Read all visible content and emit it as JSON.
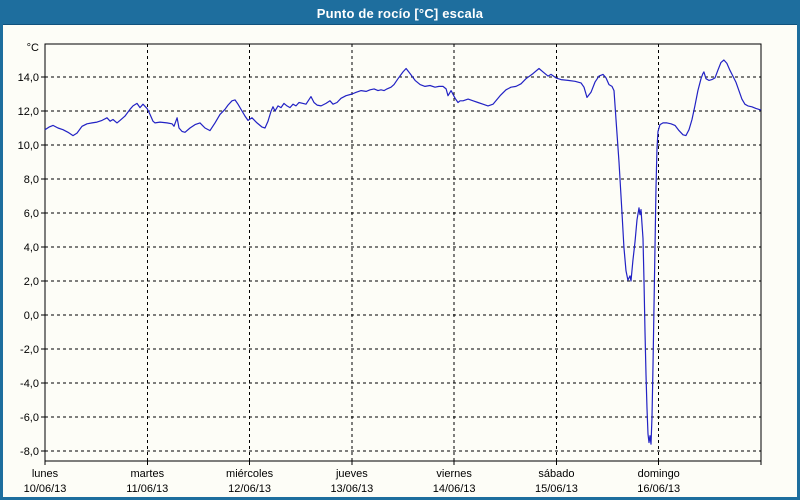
{
  "title": "Punto de rocío [°C] escala",
  "colors": {
    "title_bar": "#1E6E9E",
    "frame": "#1E6E9E",
    "line": "#2222C4",
    "grid": "#000000",
    "background": "#FDFDF7",
    "title_text": "#FFFFFF"
  },
  "chart_data": {
    "type": "line",
    "title": "Punto de rocío [°C] escala",
    "y_unit_label": "°C",
    "xlabel": "",
    "ylabel": "",
    "ylim": [
      -8.6,
      15.9
    ],
    "xlim_days": [
      0,
      7
    ],
    "grid": "dashed",
    "legend": "none",
    "y_ticks": [
      {
        "v": 14,
        "label": "14,0"
      },
      {
        "v": 12,
        "label": "12,0"
      },
      {
        "v": 10,
        "label": "10,0"
      },
      {
        "v": 8,
        "label": "8,0"
      },
      {
        "v": 6,
        "label": "6,0"
      },
      {
        "v": 4,
        "label": "4,0"
      },
      {
        "v": 2,
        "label": "2,0"
      },
      {
        "v": 0,
        "label": "0,0"
      },
      {
        "v": -2,
        "label": "-2,0"
      },
      {
        "v": -4,
        "label": "-4,0"
      },
      {
        "v": -6,
        "label": "-6,0"
      },
      {
        "v": -8,
        "label": "-8,0"
      }
    ],
    "x_days": [
      {
        "name": "lunes",
        "date": "10/06/13"
      },
      {
        "name": "martes",
        "date": "11/06/13"
      },
      {
        "name": "miércoles",
        "date": "12/06/13"
      },
      {
        "name": "jueves",
        "date": "13/06/13"
      },
      {
        "name": "viernes",
        "date": "14/06/13"
      },
      {
        "name": "sábado",
        "date": "15/06/13"
      },
      {
        "name": "domingo",
        "date": "16/06/13"
      }
    ],
    "series": [
      {
        "name": "Punto de rocío [°C]",
        "color": "#2222C4",
        "points": [
          [
            0.0,
            10.9
          ],
          [
            0.039,
            11.05
          ],
          [
            0.078,
            11.15
          ],
          [
            0.127,
            11.0
          ],
          [
            0.176,
            10.9
          ],
          [
            0.225,
            10.75
          ],
          [
            0.274,
            10.55
          ],
          [
            0.313,
            10.7
          ],
          [
            0.362,
            11.1
          ],
          [
            0.411,
            11.25
          ],
          [
            0.46,
            11.3
          ],
          [
            0.508,
            11.35
          ],
          [
            0.557,
            11.45
          ],
          [
            0.606,
            11.6
          ],
          [
            0.636,
            11.4
          ],
          [
            0.665,
            11.5
          ],
          [
            0.704,
            11.3
          ],
          [
            0.733,
            11.45
          ],
          [
            0.782,
            11.7
          ],
          [
            0.831,
            12.1
          ],
          [
            0.86,
            12.3
          ],
          [
            0.899,
            12.45
          ],
          [
            0.929,
            12.2
          ],
          [
            0.958,
            12.4
          ],
          [
            0.997,
            12.15
          ],
          [
            1.027,
            11.8
          ],
          [
            1.056,
            11.4
          ],
          [
            1.075,
            11.3
          ],
          [
            1.124,
            11.35
          ],
          [
            1.193,
            11.3
          ],
          [
            1.242,
            11.25
          ],
          [
            1.261,
            11.1
          ],
          [
            1.291,
            11.6
          ],
          [
            1.31,
            11.0
          ],
          [
            1.339,
            10.8
          ],
          [
            1.369,
            10.75
          ],
          [
            1.418,
            11.0
          ],
          [
            1.467,
            11.2
          ],
          [
            1.515,
            11.3
          ],
          [
            1.564,
            11.0
          ],
          [
            1.613,
            10.85
          ],
          [
            1.662,
            11.3
          ],
          [
            1.711,
            11.8
          ],
          [
            1.76,
            12.1
          ],
          [
            1.789,
            12.35
          ],
          [
            1.828,
            12.6
          ],
          [
            1.858,
            12.65
          ],
          [
            1.887,
            12.4
          ],
          [
            1.926,
            12.0
          ],
          [
            1.955,
            11.7
          ],
          [
            1.985,
            11.45
          ],
          [
            2.024,
            11.6
          ],
          [
            2.073,
            11.3
          ],
          [
            2.122,
            11.05
          ],
          [
            2.151,
            11.0
          ],
          [
            2.18,
            11.4
          ],
          [
            2.21,
            12.0
          ],
          [
            2.229,
            12.25
          ],
          [
            2.249,
            12.0
          ],
          [
            2.278,
            12.3
          ],
          [
            2.307,
            12.2
          ],
          [
            2.337,
            12.45
          ],
          [
            2.366,
            12.3
          ],
          [
            2.395,
            12.2
          ],
          [
            2.425,
            12.4
          ],
          [
            2.454,
            12.3
          ],
          [
            2.483,
            12.5
          ],
          [
            2.523,
            12.45
          ],
          [
            2.552,
            12.4
          ],
          [
            2.601,
            12.85
          ],
          [
            2.63,
            12.5
          ],
          [
            2.66,
            12.35
          ],
          [
            2.699,
            12.3
          ],
          [
            2.747,
            12.45
          ],
          [
            2.786,
            12.6
          ],
          [
            2.816,
            12.4
          ],
          [
            2.855,
            12.5
          ],
          [
            2.894,
            12.75
          ],
          [
            2.943,
            12.9
          ],
          [
            3.002,
            13.0
          ],
          [
            3.041,
            13.1
          ],
          [
            3.09,
            13.2
          ],
          [
            3.139,
            13.15
          ],
          [
            3.178,
            13.25
          ],
          [
            3.217,
            13.3
          ],
          [
            3.256,
            13.2
          ],
          [
            3.285,
            13.25
          ],
          [
            3.314,
            13.2
          ],
          [
            3.344,
            13.3
          ],
          [
            3.383,
            13.4
          ],
          [
            3.412,
            13.55
          ],
          [
            3.451,
            13.9
          ],
          [
            3.5,
            14.3
          ],
          [
            3.53,
            14.5
          ],
          [
            3.569,
            14.2
          ],
          [
            3.618,
            13.8
          ],
          [
            3.667,
            13.55
          ],
          [
            3.715,
            13.45
          ],
          [
            3.764,
            13.5
          ],
          [
            3.813,
            13.4
          ],
          [
            3.852,
            13.45
          ],
          [
            3.891,
            13.45
          ],
          [
            3.921,
            13.3
          ],
          [
            3.94,
            12.9
          ],
          [
            3.97,
            13.2
          ],
          [
            4.009,
            12.75
          ],
          [
            4.038,
            12.5
          ],
          [
            4.058,
            12.6
          ],
          [
            4.087,
            12.6
          ],
          [
            4.136,
            12.7
          ],
          [
            4.185,
            12.6
          ],
          [
            4.233,
            12.5
          ],
          [
            4.282,
            12.4
          ],
          [
            4.331,
            12.3
          ],
          [
            4.38,
            12.4
          ],
          [
            4.449,
            12.9
          ],
          [
            4.507,
            13.25
          ],
          [
            4.556,
            13.4
          ],
          [
            4.605,
            13.45
          ],
          [
            4.654,
            13.6
          ],
          [
            4.703,
            13.9
          ],
          [
            4.771,
            14.2
          ],
          [
            4.83,
            14.5
          ],
          [
            4.869,
            14.3
          ],
          [
            4.918,
            14.05
          ],
          [
            4.947,
            14.15
          ],
          [
            4.996,
            13.95
          ],
          [
            5.045,
            13.85
          ],
          [
            5.113,
            13.8
          ],
          [
            5.182,
            13.75
          ],
          [
            5.24,
            13.65
          ],
          [
            5.27,
            13.4
          ],
          [
            5.299,
            12.8
          ],
          [
            5.338,
            13.1
          ],
          [
            5.377,
            13.7
          ],
          [
            5.416,
            14.05
          ],
          [
            5.455,
            14.15
          ],
          [
            5.485,
            13.95
          ],
          [
            5.514,
            13.55
          ],
          [
            5.543,
            13.45
          ],
          [
            5.563,
            13.2
          ],
          [
            5.582,
            11.5
          ],
          [
            5.612,
            9.0
          ],
          [
            5.641,
            6.0
          ],
          [
            5.66,
            4.0
          ],
          [
            5.68,
            2.6
          ],
          [
            5.699,
            2.05
          ],
          [
            5.719,
            2.3
          ],
          [
            5.729,
            2.0
          ],
          [
            5.748,
            3.2
          ],
          [
            5.768,
            4.3
          ],
          [
            5.788,
            5.6
          ],
          [
            5.807,
            6.3
          ],
          [
            5.817,
            5.9
          ],
          [
            5.827,
            6.2
          ],
          [
            5.846,
            4.5
          ],
          [
            5.856,
            2.0
          ],
          [
            5.866,
            -1.0
          ],
          [
            5.876,
            -3.5
          ],
          [
            5.885,
            -5.5
          ],
          [
            5.895,
            -7.0
          ],
          [
            5.905,
            -7.5
          ],
          [
            5.915,
            -7.1
          ],
          [
            5.925,
            -7.6
          ],
          [
            5.934,
            -6.0
          ],
          [
            5.944,
            -3.0
          ],
          [
            5.954,
            0.5
          ],
          [
            5.964,
            4.0
          ],
          [
            5.973,
            7.5
          ],
          [
            5.983,
            9.8
          ],
          [
            5.993,
            10.8
          ],
          [
            6.013,
            11.2
          ],
          [
            6.042,
            11.3
          ],
          [
            6.081,
            11.3
          ],
          [
            6.12,
            11.25
          ],
          [
            6.159,
            11.15
          ],
          [
            6.198,
            10.85
          ],
          [
            6.237,
            10.6
          ],
          [
            6.266,
            10.55
          ],
          [
            6.296,
            10.9
          ],
          [
            6.325,
            11.5
          ],
          [
            6.354,
            12.3
          ],
          [
            6.383,
            13.2
          ],
          [
            6.413,
            13.9
          ],
          [
            6.432,
            14.2
          ],
          [
            6.442,
            14.3
          ],
          [
            6.462,
            13.9
          ],
          [
            6.491,
            13.8
          ],
          [
            6.52,
            13.85
          ],
          [
            6.55,
            13.95
          ],
          [
            6.579,
            14.4
          ],
          [
            6.608,
            14.85
          ],
          [
            6.637,
            15.0
          ],
          [
            6.667,
            14.8
          ],
          [
            6.696,
            14.4
          ],
          [
            6.725,
            14.05
          ],
          [
            6.755,
            13.7
          ],
          [
            6.784,
            13.2
          ],
          [
            6.813,
            12.7
          ],
          [
            6.843,
            12.4
          ],
          [
            6.872,
            12.3
          ],
          [
            6.911,
            12.25
          ],
          [
            6.95,
            12.15
          ],
          [
            7.0,
            12.05
          ]
        ]
      }
    ]
  }
}
